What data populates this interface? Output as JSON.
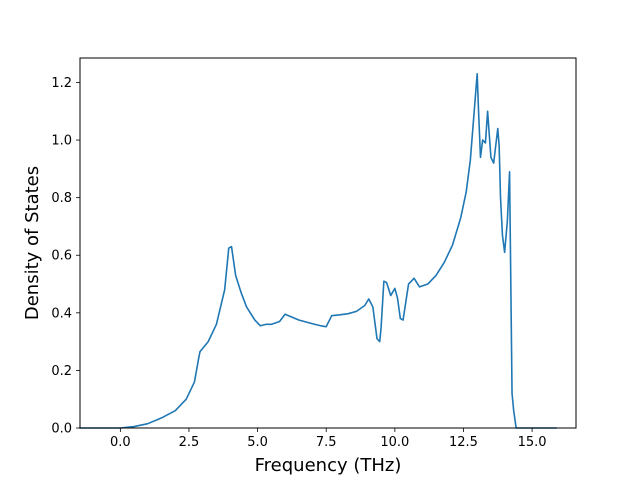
{
  "chart_data": {
    "type": "line",
    "title": "",
    "xlabel": "Frequency (THz)",
    "ylabel": "Density of States",
    "xlim": [
      -1.47,
      16.6
    ],
    "ylim": [
      0,
      1.285
    ],
    "xticks": [
      0.0,
      2.5,
      5.0,
      7.5,
      10.0,
      12.5,
      15.0
    ],
    "xtick_labels": [
      "0.0",
      "2.5",
      "5.0",
      "7.5",
      "10.0",
      "12.5",
      "15.0"
    ],
    "yticks": [
      0.0,
      0.2,
      0.4,
      0.6,
      0.8,
      1.0,
      1.2
    ],
    "ytick_labels": [
      "0.0",
      "0.2",
      "0.4",
      "0.6",
      "0.8",
      "1.0",
      "1.2"
    ],
    "grid": false,
    "series": [
      {
        "color": "#1f77b4",
        "x": [
          -1.5,
          0.0,
          0.5,
          1.0,
          1.5,
          2.0,
          2.4,
          2.7,
          2.85,
          2.9,
          3.2,
          3.5,
          3.8,
          3.95,
          4.05,
          4.2,
          4.4,
          4.6,
          4.9,
          5.1,
          5.3,
          5.5,
          5.8,
          6.0,
          6.5,
          7.0,
          7.3,
          7.5,
          7.7,
          8.0,
          8.3,
          8.6,
          8.9,
          9.05,
          9.2,
          9.35,
          9.45,
          9.5,
          9.6,
          9.7,
          9.85,
          10.0,
          10.1,
          10.2,
          10.3,
          10.5,
          10.7,
          10.9,
          11.2,
          11.5,
          11.8,
          12.1,
          12.4,
          12.6,
          12.75,
          12.85,
          12.95,
          13.0,
          13.05,
          13.12,
          13.2,
          13.3,
          13.38,
          13.5,
          13.6,
          13.7,
          13.75,
          13.8,
          13.85,
          13.92,
          14.0,
          14.1,
          14.18,
          14.27,
          14.33,
          14.42,
          14.5,
          15.0,
          15.9
        ],
        "y": [
          0.0,
          0.0,
          0.005,
          0.015,
          0.035,
          0.06,
          0.1,
          0.16,
          0.24,
          0.265,
          0.3,
          0.36,
          0.48,
          0.625,
          0.63,
          0.53,
          0.47,
          0.42,
          0.375,
          0.355,
          0.36,
          0.36,
          0.37,
          0.395,
          0.375,
          0.362,
          0.355,
          0.352,
          0.39,
          0.393,
          0.397,
          0.405,
          0.425,
          0.448,
          0.42,
          0.31,
          0.3,
          0.35,
          0.51,
          0.505,
          0.46,
          0.485,
          0.45,
          0.38,
          0.375,
          0.5,
          0.52,
          0.49,
          0.5,
          0.53,
          0.575,
          0.635,
          0.73,
          0.82,
          0.93,
          1.05,
          1.17,
          1.23,
          1.1,
          0.94,
          1.0,
          0.99,
          1.1,
          0.94,
          0.92,
          1.0,
          1.04,
          0.98,
          0.8,
          0.67,
          0.61,
          0.72,
          0.89,
          0.12,
          0.06,
          0.0,
          0.0,
          0.0,
          0.0
        ]
      }
    ]
  }
}
